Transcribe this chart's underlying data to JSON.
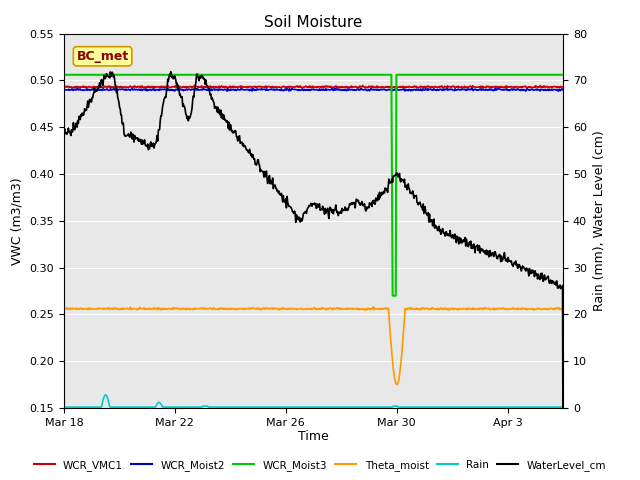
{
  "title": "Soil Moisture",
  "ylabel_left": "VWC (m3/m3)",
  "ylabel_right": "Rain (mm), Water Level (cm)",
  "xlabel": "Time",
  "xlim_days": [
    0,
    18
  ],
  "ylim_left": [
    0.15,
    0.55
  ],
  "ylim_right": [
    0,
    80
  ],
  "tick_dates": [
    "Mar 18",
    "Mar 22",
    "Mar 26",
    "Mar 30",
    "Apr 3"
  ],
  "tick_positions": [
    0,
    4,
    8,
    12,
    16
  ],
  "background_color": "#e8e8e8",
  "annotation_box": {
    "text": "BC_met",
    "text_color": "#8b0000",
    "box_color": "#ffff99",
    "border_color": "#cc9900",
    "fontsize": 9
  },
  "colors": {
    "wcr_vmc1": "#cc0000",
    "wcr_moist2": "#0000cc",
    "wcr_moist3": "#00cc00",
    "theta_moist": "#ff9900",
    "rain": "#00cccc",
    "water_level": "#000000"
  },
  "legend_labels": [
    "WCR_VMC1",
    "WCR_Moist2",
    "WCR_Moist3",
    "Theta_moist",
    "Rain",
    "WaterLevel_cm"
  ]
}
